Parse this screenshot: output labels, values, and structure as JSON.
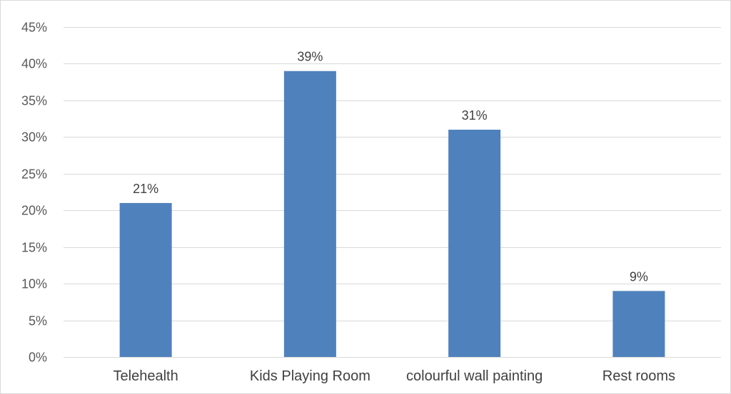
{
  "chart_data": {
    "type": "bar",
    "title": "",
    "xlabel": "",
    "ylabel": "",
    "categories": [
      "Telehealth",
      "Kids Playing Room",
      "colourful wall painting",
      "Rest rooms"
    ],
    "values": [
      21,
      39,
      31,
      9
    ],
    "data_labels": [
      "21%",
      "39%",
      "31%",
      "9%"
    ],
    "ylim": [
      0,
      45
    ],
    "y_ticks": [
      0,
      5,
      10,
      15,
      20,
      25,
      30,
      35,
      40,
      45
    ],
    "y_tick_labels": [
      "0%",
      "5%",
      "10%",
      "15%",
      "20%",
      "25%",
      "30%",
      "35%",
      "40%",
      "45%"
    ],
    "grid": true,
    "legend": "none",
    "bar_color": "#4f81bd",
    "grid_color": "#d9d9d9"
  }
}
